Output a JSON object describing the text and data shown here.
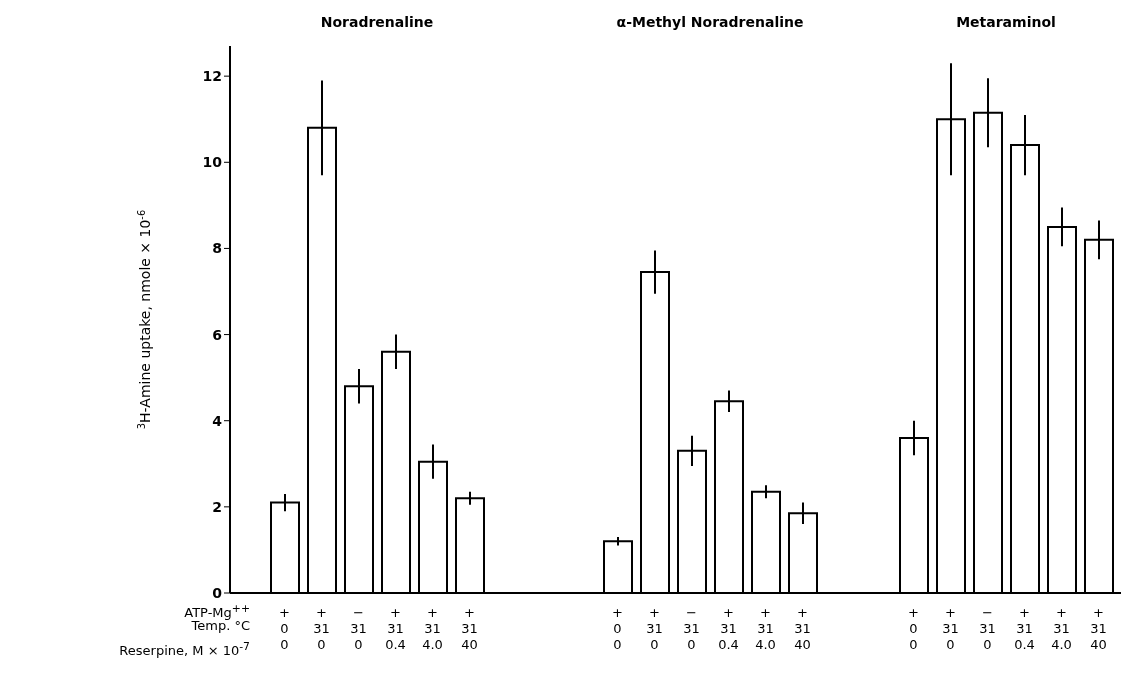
{
  "chart_data": {
    "type": "bar",
    "ylabel": "$^{3}$H-Amine uptake, nmole × 10$^{-6}$",
    "categories": [
      "+\n0\n0",
      "+\n31\n0",
      "−\n31\n0",
      "+\n31\n0.4",
      "+\n31\n4.0",
      "+\n31\n40",
      null,
      null,
      null,
      "+\n0\n0",
      "+\n31\n0",
      "−\n31\n0",
      "+\n31\n0.4",
      "+\n31\n4.0",
      "+\n31\n40",
      null,
      null,
      "+\n0\n0",
      "+\n31\n0",
      "−\n31\n0",
      "+\n31\n0.4",
      "+\n31\n4.0",
      "+\n31\n40"
    ],
    "values": [
      2.1,
      10.8,
      4.8,
      5.6,
      3.05,
      2.2,
      null,
      null,
      null,
      1.2,
      7.45,
      3.3,
      4.45,
      2.35,
      1.85,
      null,
      null,
      3.6,
      11.0,
      11.15,
      10.4,
      8.5,
      8.2
    ],
    "errors": [
      0.2,
      1.1,
      0.4,
      0.4,
      0.4,
      0.15,
      null,
      null,
      null,
      0.1,
      0.5,
      0.35,
      0.25,
      0.15,
      0.25,
      null,
      null,
      0.4,
      1.3,
      0.8,
      0.7,
      0.45,
      0.45
    ],
    "color": "#ffffff",
    "ylim": [
      0,
      12.7
    ],
    "yticks": [
      0,
      2,
      4,
      6,
      8,
      10,
      12
    ],
    "annotations": [
      "Noradrenaline",
      "α-Methyl Noradrenaline",
      "Metaraminol",
      "ATP-Mg$^{++}$",
      "Temp. °C",
      "Reserpine, M × 10$^{-7}$"
    ]
  }
}
